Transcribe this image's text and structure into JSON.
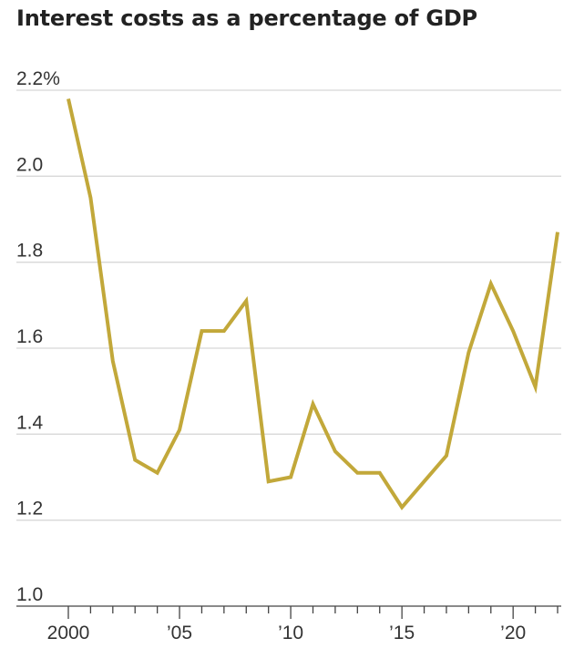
{
  "chart_data": {
    "type": "line",
    "title": "Interest costs as a percentage of GDP",
    "xlabel": "",
    "ylabel": "",
    "ylim": [
      1.0,
      2.2
    ],
    "xlim": [
      2000,
      2022
    ],
    "y_ticks": [
      {
        "value": 2.2,
        "label": "2.2%"
      },
      {
        "value": 2.0,
        "label": "2.0"
      },
      {
        "value": 1.8,
        "label": "1.8"
      },
      {
        "value": 1.6,
        "label": "1.6"
      },
      {
        "value": 1.4,
        "label": "1.4"
      },
      {
        "value": 1.2,
        "label": "1.2"
      },
      {
        "value": 1.0,
        "label": "1.0"
      }
    ],
    "x_ticks": [
      {
        "value": 2000,
        "label": "2000"
      },
      {
        "value": 2005,
        "label": "’05"
      },
      {
        "value": 2010,
        "label": "’10"
      },
      {
        "value": 2015,
        "label": "’15"
      },
      {
        "value": 2020,
        "label": "’20"
      }
    ],
    "grid": true,
    "legend": "none",
    "series": [
      {
        "color": "#c2a83a",
        "x": [
          2000,
          2001,
          2002,
          2003,
          2004,
          2005,
          2006,
          2007,
          2008,
          2009,
          2010,
          2011,
          2012,
          2013,
          2014,
          2015,
          2016,
          2017,
          2018,
          2019,
          2020,
          2021,
          2022
        ],
        "values": [
          2.18,
          1.95,
          1.57,
          1.34,
          1.31,
          1.41,
          1.64,
          1.64,
          1.71,
          1.29,
          1.3,
          1.47,
          1.36,
          1.31,
          1.31,
          1.23,
          1.29,
          1.35,
          1.59,
          1.75,
          1.64,
          1.51,
          1.87
        ]
      }
    ]
  }
}
